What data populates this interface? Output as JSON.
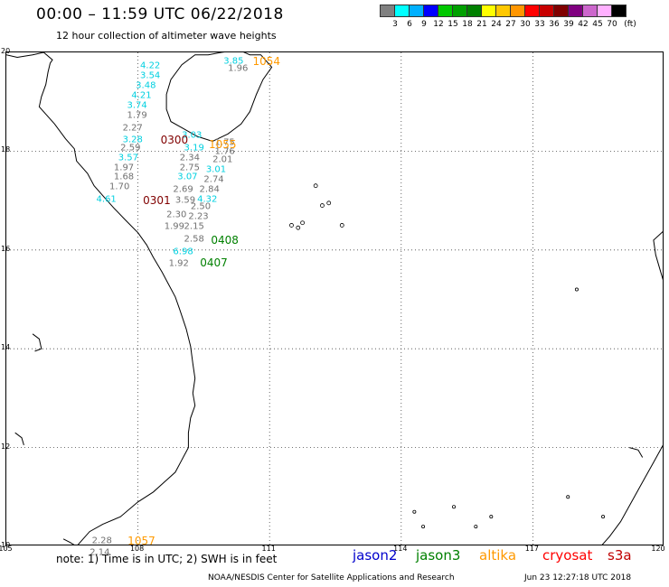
{
  "header": {
    "title": "00:00 – 11:59 UTC 06/22/2018",
    "subtitle": "12 hour collection of altimeter wave heights"
  },
  "scale": {
    "colors": [
      "#808080",
      "#00ffff",
      "#00b0ff",
      "#0000ff",
      "#00c800",
      "#00a000",
      "#008000",
      "#ffff00",
      "#ffc800",
      "#ff9600",
      "#ff0000",
      "#c80000",
      "#800000",
      "#800080",
      "#cc66cc",
      "#ffb0ff",
      "#000000"
    ],
    "labels": [
      "3",
      "6",
      "9",
      "12",
      "15",
      "18",
      "21",
      "24",
      "27",
      "30",
      "33",
      "36",
      "39",
      "42",
      "45",
      "70",
      "(ft)"
    ]
  },
  "map": {
    "lat_ticks": [
      "20",
      "18",
      "16",
      "14",
      "12",
      "10"
    ],
    "lon_ticks": [
      "105",
      "108",
      "111",
      "114",
      "117",
      "120"
    ],
    "coastline_color": "#000000",
    "grid_style": "dotted"
  },
  "observations": [
    {
      "v": "3.85",
      "c": "#00d0e0",
      "lon": 110.2,
      "lat": 19.8
    },
    {
      "v": "1.96",
      "c": "#707070",
      "lon": 110.3,
      "lat": 19.65
    },
    {
      "v": "4.22",
      "c": "#00d0e0",
      "lon": 108.3,
      "lat": 19.7
    },
    {
      "v": "3.54",
      "c": "#00d0e0",
      "lon": 108.3,
      "lat": 19.5
    },
    {
      "v": "3.48",
      "c": "#00d0e0",
      "lon": 108.2,
      "lat": 19.3
    },
    {
      "v": "4.21",
      "c": "#00d0e0",
      "lon": 108.1,
      "lat": 19.1
    },
    {
      "v": "3.74",
      "c": "#00d0e0",
      "lon": 108.0,
      "lat": 18.9
    },
    {
      "v": "1.79",
      "c": "#707070",
      "lon": 108.0,
      "lat": 18.7
    },
    {
      "v": "2.27",
      "c": "#707070",
      "lon": 107.9,
      "lat": 18.45
    },
    {
      "v": "3.28",
      "c": "#00d0e0",
      "lon": 107.9,
      "lat": 18.2
    },
    {
      "v": "2.59",
      "c": "#707070",
      "lon": 107.85,
      "lat": 18.05
    },
    {
      "v": "3.57",
      "c": "#00d0e0",
      "lon": 107.8,
      "lat": 17.85
    },
    {
      "v": "1.97",
      "c": "#707070",
      "lon": 107.7,
      "lat": 17.65
    },
    {
      "v": "1.68",
      "c": "#707070",
      "lon": 107.7,
      "lat": 17.45
    },
    {
      "v": "1.70",
      "c": "#707070",
      "lon": 107.6,
      "lat": 17.25
    },
    {
      "v": "4.61",
      "c": "#00d0e0",
      "lon": 107.3,
      "lat": 17.0
    },
    {
      "v": "3.03",
      "c": "#00d0e0",
      "lon": 109.25,
      "lat": 18.3
    },
    {
      "v": "3.19",
      "c": "#00d0e0",
      "lon": 109.3,
      "lat": 18.05
    },
    {
      "v": "2.34",
      "c": "#707070",
      "lon": 109.2,
      "lat": 17.85
    },
    {
      "v": "2.75",
      "c": "#707070",
      "lon": 109.2,
      "lat": 17.65
    },
    {
      "v": "3.07",
      "c": "#00d0e0",
      "lon": 109.15,
      "lat": 17.45
    },
    {
      "v": "2.69",
      "c": "#707070",
      "lon": 109.05,
      "lat": 17.2
    },
    {
      "v": "3.59",
      "c": "#707070",
      "lon": 109.1,
      "lat": 16.98
    },
    {
      "v": "2.30",
      "c": "#707070",
      "lon": 108.9,
      "lat": 16.7
    },
    {
      "v": "1.99",
      "c": "#707070",
      "lon": 108.85,
      "lat": 16.45
    },
    {
      "v": "2.15",
      "c": "#707070",
      "lon": 109.3,
      "lat": 16.45
    },
    {
      "v": "2.58",
      "c": "#707070",
      "lon": 109.3,
      "lat": 16.2
    },
    {
      "v": "6.98",
      "c": "#00d0e0",
      "lon": 109.05,
      "lat": 15.95
    },
    {
      "v": "1.92",
      "c": "#707070",
      "lon": 108.95,
      "lat": 15.7
    },
    {
      "v": "1.75",
      "c": "#707070",
      "lon": 110.0,
      "lat": 18.15
    },
    {
      "v": "1.76",
      "c": "#707070",
      "lon": 110.0,
      "lat": 17.97
    },
    {
      "v": "2.01",
      "c": "#707070",
      "lon": 109.95,
      "lat": 17.8
    },
    {
      "v": "3.01",
      "c": "#00d0e0",
      "lon": 109.8,
      "lat": 17.6
    },
    {
      "v": "2.74",
      "c": "#707070",
      "lon": 109.75,
      "lat": 17.4
    },
    {
      "v": "2.84",
      "c": "#707070",
      "lon": 109.65,
      "lat": 17.2
    },
    {
      "v": "4.32",
      "c": "#00d0e0",
      "lon": 109.6,
      "lat": 17.0
    },
    {
      "v": "2.50",
      "c": "#707070",
      "lon": 109.45,
      "lat": 16.85
    },
    {
      "v": "2.23",
      "c": "#707070",
      "lon": 109.4,
      "lat": 16.65
    },
    {
      "v": "2.28",
      "c": "#707070",
      "lon": 107.2,
      "lat": 10.1
    },
    {
      "v": "2.14",
      "c": "#707070",
      "lon": 107.15,
      "lat": 9.85
    }
  ],
  "passes": [
    {
      "t": "1054",
      "c": "#ff9900",
      "lon": 110.95,
      "lat": 19.8
    },
    {
      "t": "0300",
      "c": "#800000",
      "lon": 108.85,
      "lat": 18.2
    },
    {
      "t": "1055",
      "c": "#ff9900",
      "lon": 109.95,
      "lat": 18.12
    },
    {
      "t": "0301",
      "c": "#800000",
      "lon": 108.45,
      "lat": 16.98
    },
    {
      "t": "0408",
      "c": "#008000",
      "lon": 110.0,
      "lat": 16.18
    },
    {
      "t": "0407",
      "c": "#008000",
      "lon": 109.75,
      "lat": 15.72
    },
    {
      "t": "1057",
      "c": "#ff9900",
      "lon": 108.1,
      "lat": 10.1
    }
  ],
  "footer": {
    "note": "note: 1) Time is in UTC; 2) SWH is in feet",
    "credits": "NOAA/NESDIS Center for Satellite Applications and Research",
    "timestamp": "Jun 23 12:27:18 UTC 2018"
  },
  "legend": [
    {
      "name": "jason2",
      "color": "#0000cc"
    },
    {
      "name": "jason3",
      "color": "#008000"
    },
    {
      "name": "altika",
      "color": "#ff9900"
    },
    {
      "name": "cryosat",
      "color": "#ff0000"
    },
    {
      "name": "s3a",
      "color": "#c00000"
    }
  ]
}
